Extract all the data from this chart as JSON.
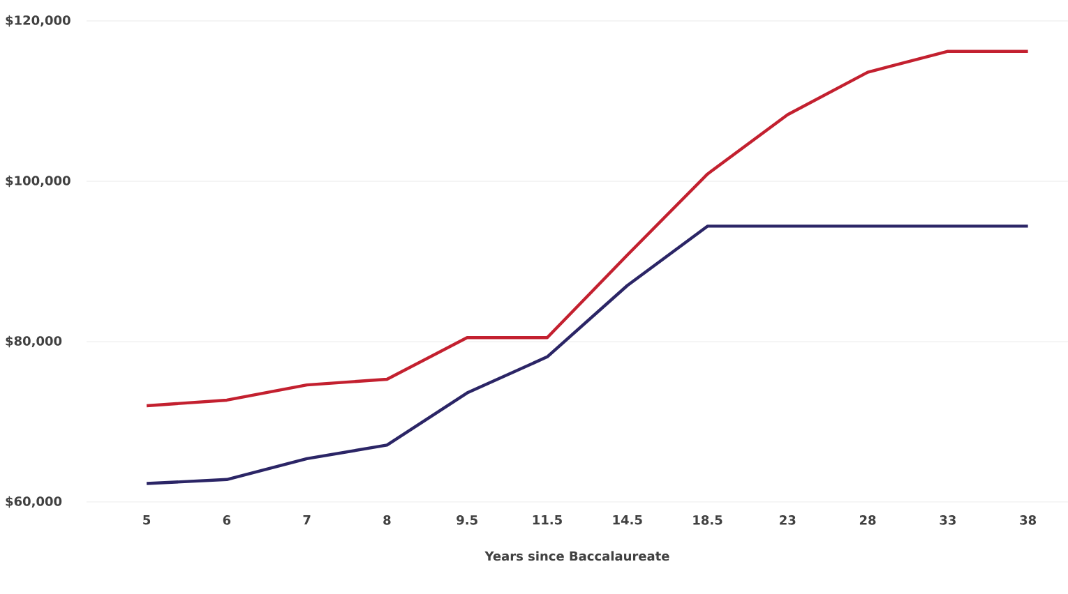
{
  "chart_data": {
    "type": "line",
    "xlabel": "Years since Baccalaureate",
    "categories": [
      "5",
      "6",
      "7",
      "8",
      "9.5",
      "11.5",
      "14.5",
      "18.5",
      "23",
      "28",
      "33",
      "38"
    ],
    "series": [
      {
        "color": "#c3202f",
        "values": [
          72000,
          72700,
          74600,
          75300,
          80500,
          80500,
          90800,
          100900,
          108300,
          113600,
          116200,
          116200
        ]
      },
      {
        "color": "#2b2566",
        "values": [
          62300,
          62800,
          65400,
          67100,
          73600,
          78100,
          87000,
          94400,
          94400,
          94400,
          94400,
          94400
        ]
      }
    ],
    "ylim": [
      60000,
      120000
    ],
    "yticks": [
      {
        "value": 60000,
        "label": "$60,000"
      },
      {
        "value": 80000,
        "label": "$80,000"
      },
      {
        "value": 100000,
        "label": "$100,000"
      },
      {
        "value": 120000,
        "label": "$120,000"
      }
    ],
    "grid": "y",
    "marker": "none",
    "line_style": "solid"
  }
}
